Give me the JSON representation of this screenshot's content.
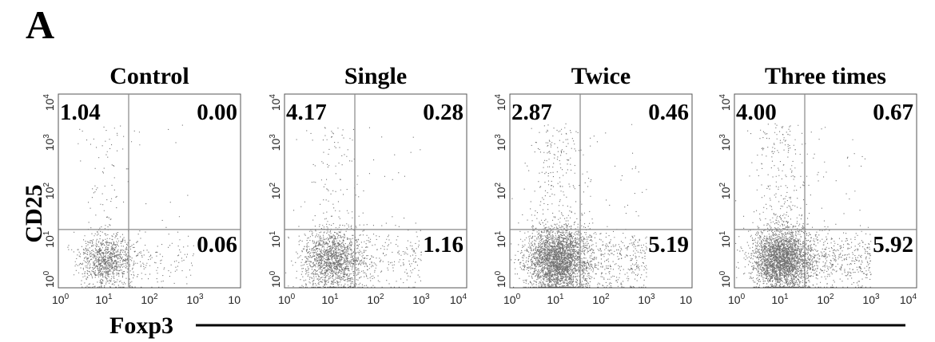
{
  "figure": {
    "panel_letter": "A",
    "y_axis_label": "CD25",
    "x_axis_label": "Foxp3"
  },
  "chart_data": [
    {
      "type": "scatter",
      "title": "Control",
      "xlabel": "Foxp3",
      "ylabel": "CD25",
      "x_scale": "log",
      "y_scale": "log",
      "xlim": [
        1,
        10000
      ],
      "ylim": [
        1,
        10000
      ],
      "x_tick_labels": [
        "10^0",
        "10^1",
        "10^2",
        "10^3",
        "10"
      ],
      "y_tick_labels": [
        "10^0",
        "10^1",
        "10^2",
        "10^3",
        "10^4"
      ],
      "quadrant_gate": {
        "x": 35,
        "y": 16
      },
      "quadrants": {
        "upper_left": "1.04",
        "upper_right": "0.00",
        "lower_right": "0.06"
      },
      "density": "low"
    },
    {
      "type": "scatter",
      "title": "Single",
      "xlabel": "Foxp3",
      "ylabel": "CD25",
      "x_scale": "log",
      "y_scale": "log",
      "xlim": [
        1,
        10000
      ],
      "ylim": [
        1,
        10000
      ],
      "x_tick_labels": [
        "10^0",
        "10^1",
        "10^2",
        "10^3",
        "10^4"
      ],
      "y_tick_labels": [
        "10^0",
        "10^1",
        "10^2",
        "10^3",
        "10^4"
      ],
      "quadrant_gate": {
        "x": 35,
        "y": 16
      },
      "quadrants": {
        "upper_left": "4.17",
        "upper_right": "0.28",
        "lower_right": "1.16"
      },
      "density": "medium"
    },
    {
      "type": "scatter",
      "title": "Twice",
      "xlabel": "Foxp3",
      "ylabel": "CD25",
      "x_scale": "log",
      "y_scale": "log",
      "xlim": [
        1,
        10000
      ],
      "ylim": [
        1,
        10000
      ],
      "x_tick_labels": [
        "10^0",
        "10^1",
        "10^2",
        "10^3",
        "10"
      ],
      "y_tick_labels": [
        "10^0",
        "10^1",
        "10^2",
        "10^3",
        "10^4"
      ],
      "quadrant_gate": {
        "x": 35,
        "y": 16
      },
      "quadrants": {
        "upper_left": "2.87",
        "upper_right": "0.46",
        "lower_right": "5.19"
      },
      "density": "high"
    },
    {
      "type": "scatter",
      "title": "Three times",
      "xlabel": "Foxp3",
      "ylabel": "CD25",
      "x_scale": "log",
      "y_scale": "log",
      "xlim": [
        1,
        10000
      ],
      "ylim": [
        1,
        10000
      ],
      "x_tick_labels": [
        "10^0",
        "10^1",
        "10^2",
        "10^3",
        "10^4"
      ],
      "y_tick_labels": [
        "10^0",
        "10^1",
        "10^2",
        "10^3",
        "10^4"
      ],
      "quadrant_gate": {
        "x": 35,
        "y": 16
      },
      "quadrants": {
        "upper_left": "4.00",
        "upper_right": "0.67",
        "lower_right": "5.92"
      },
      "density": "high"
    }
  ]
}
